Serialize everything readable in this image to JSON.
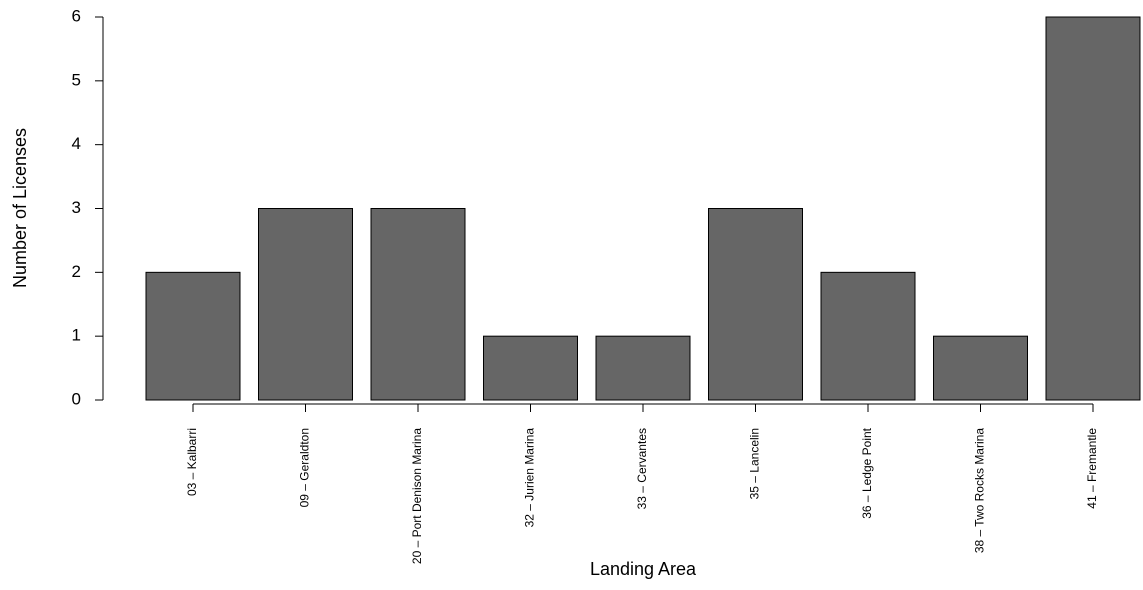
{
  "chart_data": {
    "type": "bar",
    "x_label": "Landing Area",
    "y_label": "Number of Licenses",
    "categories": [
      "03 – Kalbarri",
      "09 – Geraldton",
      "20 – Port Denison Marina",
      "32 – Jurien Marina",
      "33 – Cervantes",
      "35 – Lancelin",
      "36 – Ledge Point",
      "38 – Two Rocks Marina",
      "41 – Fremantle"
    ],
    "values": [
      2,
      3,
      3,
      1,
      1,
      3,
      2,
      1,
      6
    ],
    "color": "#666666",
    "ylim": [
      0,
      6
    ],
    "yticks": [
      0,
      1,
      2,
      3,
      4,
      5,
      6
    ],
    "grid": false
  }
}
